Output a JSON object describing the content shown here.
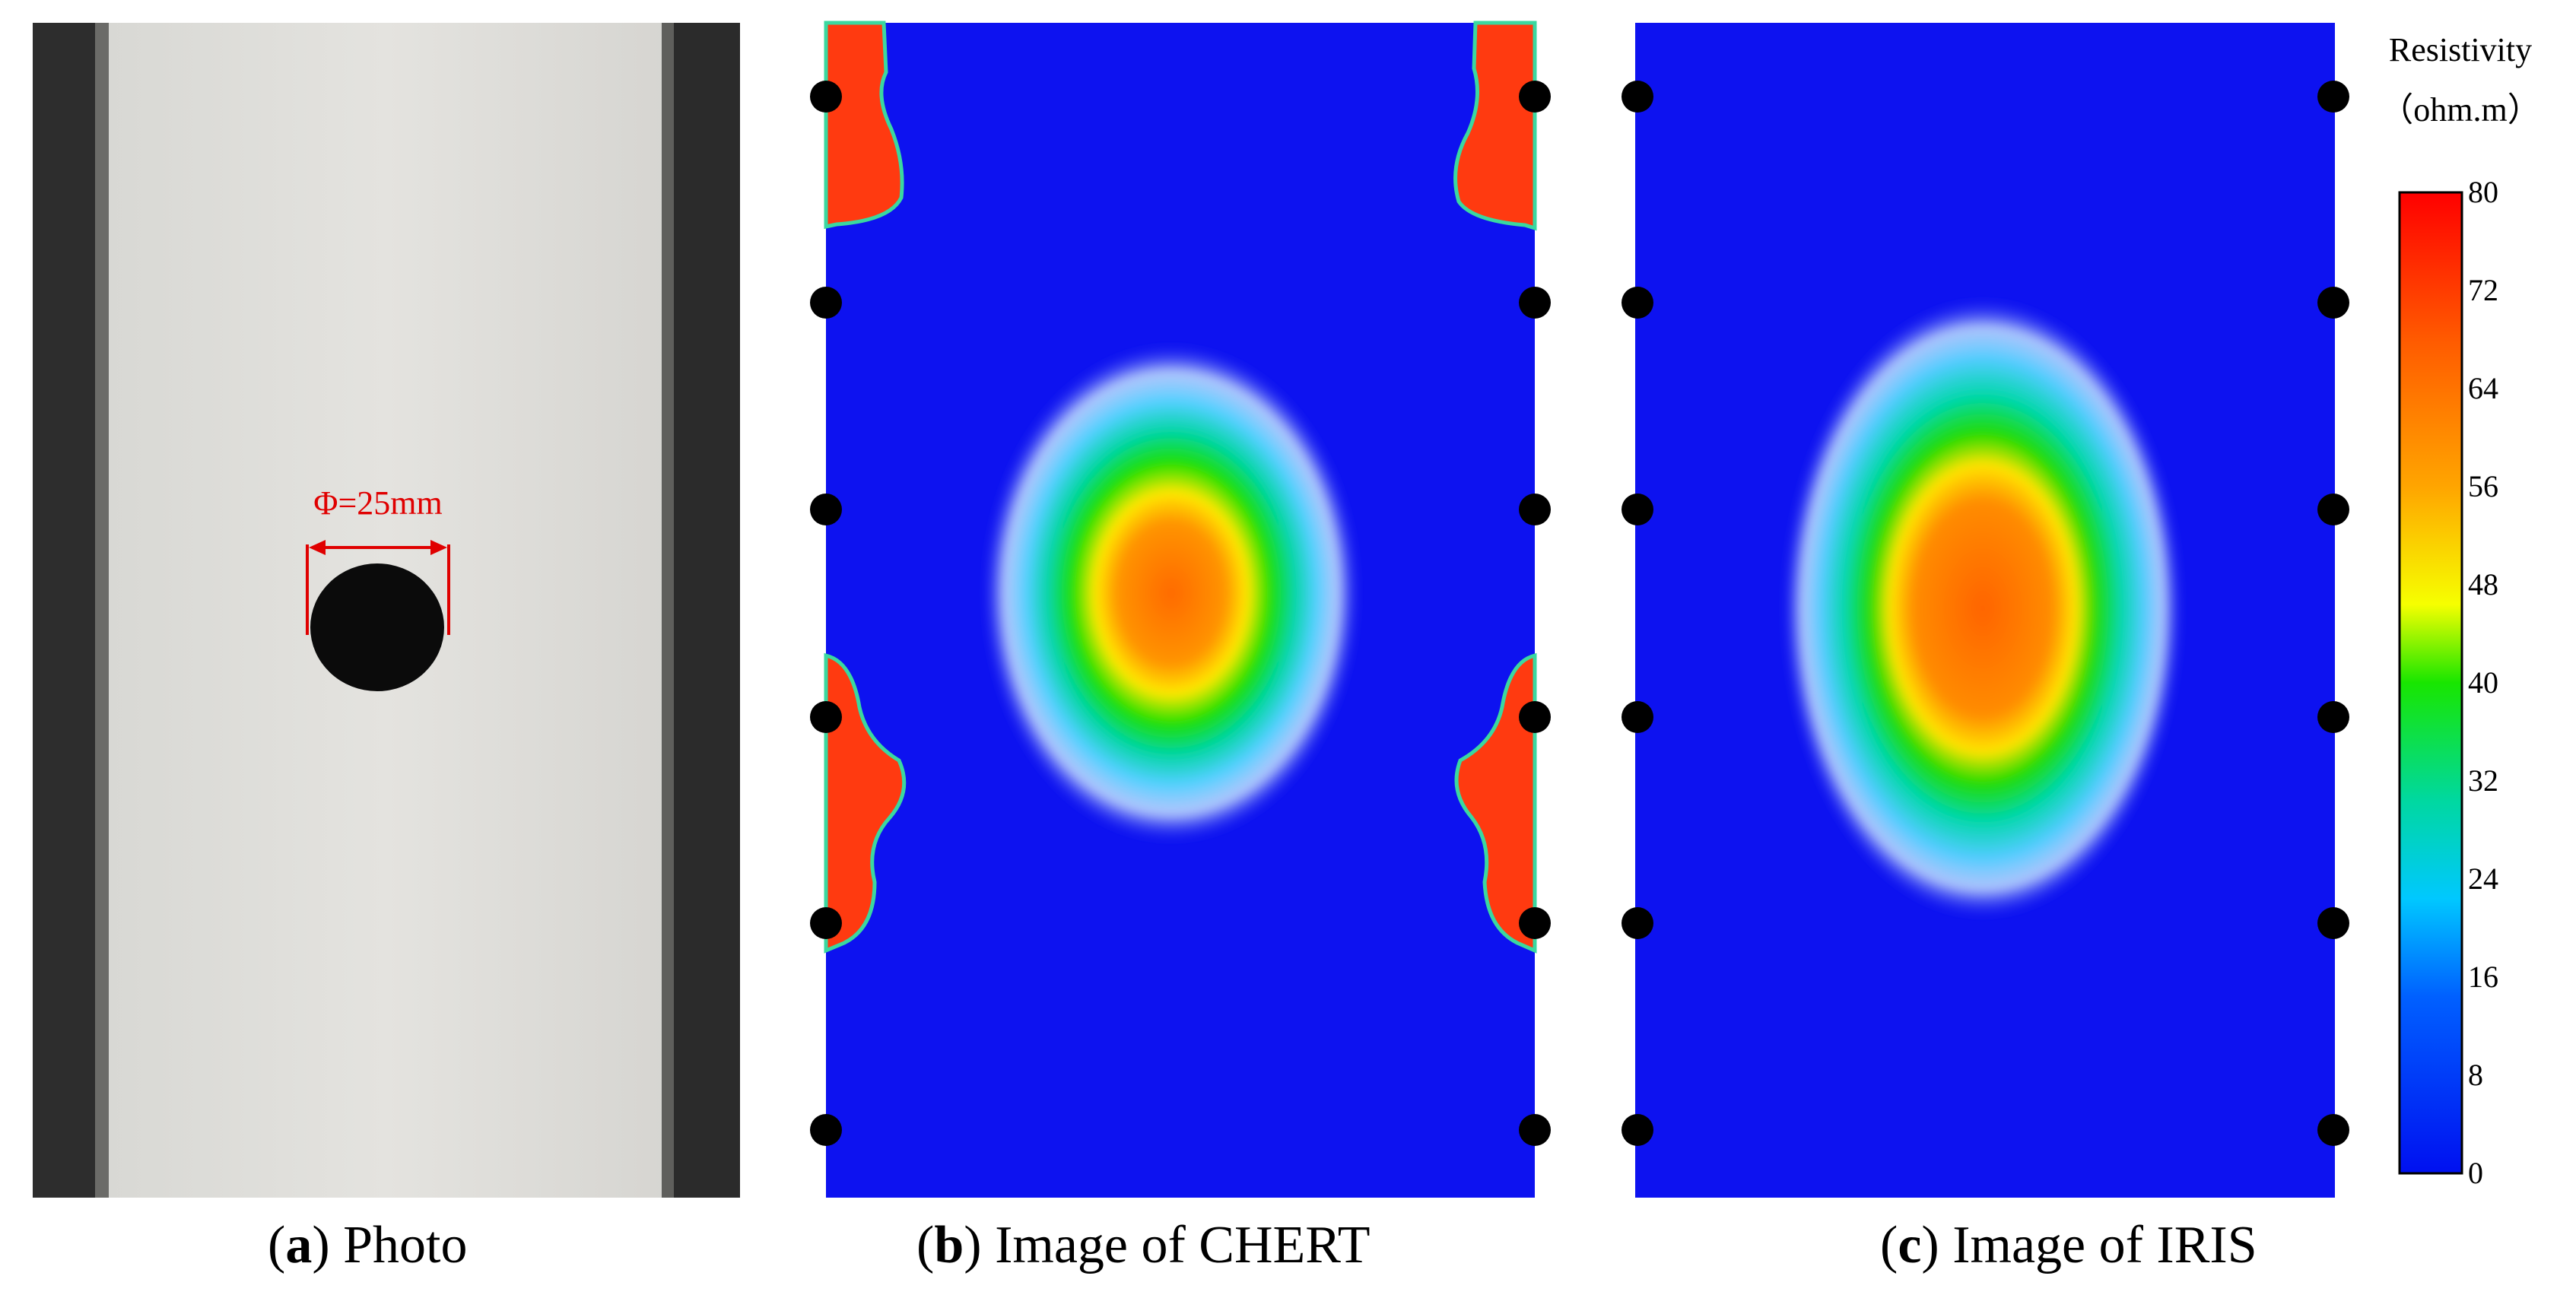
{
  "panels": [
    {
      "letter": "a",
      "caption": "Photo"
    },
    {
      "letter": "b",
      "caption": "Image of CHERT"
    },
    {
      "letter": "c",
      "caption": "Image of IRIS"
    }
  ],
  "photo": {
    "dimension_label": "Φ=25mm",
    "label_color": "#e00000"
  },
  "colorbar": {
    "title": "Resistivity",
    "unit": "（ohm.m）",
    "min": 0,
    "max": 80,
    "ticks": [
      "80",
      "72",
      "64",
      "56",
      "48",
      "40",
      "32",
      "24",
      "16",
      "8",
      "0"
    ]
  },
  "colors": {
    "background_blue": "#0d12f0",
    "high": "#ff2a00",
    "electrode": "#000000"
  }
}
